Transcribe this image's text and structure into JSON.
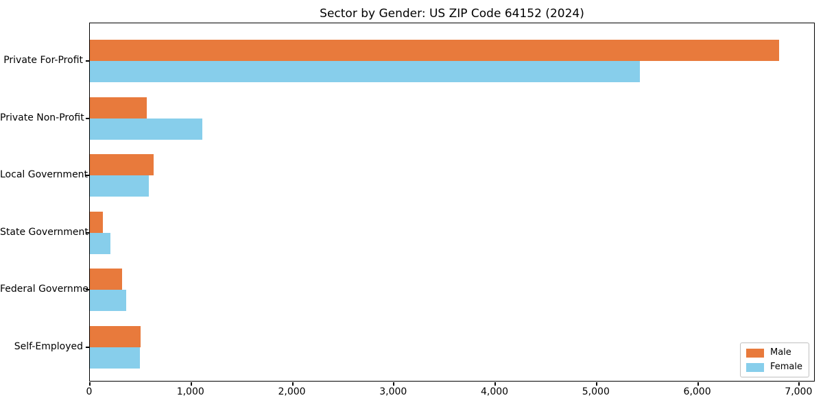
{
  "chart_data": {
    "type": "bar",
    "orientation": "horizontal",
    "title": "Sector by Gender: US ZIP Code 64152 (2024)",
    "xlabel": "",
    "ylabel": "",
    "categories": [
      "Private For-Profit",
      "Private Non-Profit",
      "Local Government",
      "State Government",
      "Federal Government",
      "Self-Employed"
    ],
    "series": [
      {
        "name": "Male",
        "color": "#e87a3c",
        "values": [
          6800,
          560,
          630,
          130,
          320,
          500
        ]
      },
      {
        "name": "Female",
        "color": "#87ceeb",
        "values": [
          5430,
          1110,
          580,
          200,
          355,
          495
        ]
      }
    ],
    "xlim": [
      0,
      7160
    ],
    "x_ticks": [
      0,
      1000,
      2000,
      3000,
      4000,
      5000,
      6000,
      7000
    ],
    "x_tick_labels": [
      "0",
      "1,000",
      "2,000",
      "3,000",
      "4,000",
      "5,000",
      "6,000",
      "7,000"
    ],
    "grid": false,
    "legend_position": "lower right",
    "background_color": "#ffffff",
    "spine_color": "#000000"
  }
}
